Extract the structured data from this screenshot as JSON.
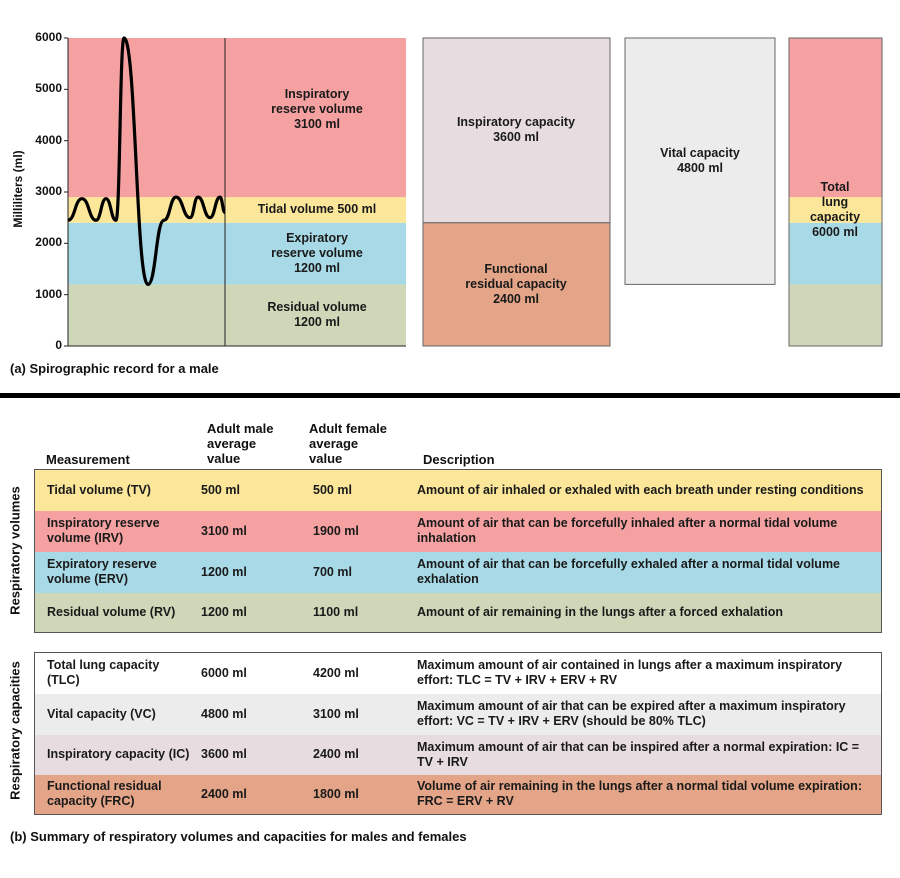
{
  "colors": {
    "irv": "#f5a1a1",
    "tv": "#fbe69a",
    "erv": "#a8d9e6",
    "rv": "#cfd7b9",
    "ic": "#e7dde0",
    "frc": "#e3a487",
    "vc": "#ececec",
    "tlc_row": "#ffffff",
    "vc_row": "#ececec",
    "ic_row": "#e7dde0",
    "frc_row": "#e3a487"
  },
  "chart_data": {
    "type": "diagram",
    "ylabel": "Milliliters (ml)",
    "ylim": [
      0,
      6000
    ],
    "yticks": [
      "0",
      "1000",
      "2000",
      "3000",
      "4000",
      "5000",
      "6000"
    ],
    "spirogram": [
      [
        0,
        2450
      ],
      [
        1,
        2870
      ],
      [
        2,
        2450
      ],
      [
        3,
        2870
      ],
      [
        4,
        2450
      ],
      [
        5,
        6000
      ],
      [
        6,
        1200
      ],
      [
        7,
        2450
      ],
      [
        8,
        2900
      ],
      [
        9,
        2500
      ],
      [
        10,
        2900
      ],
      [
        11,
        2500
      ],
      [
        12,
        2900
      ],
      [
        13,
        2600
      ]
    ],
    "volumes": [
      {
        "key": "rv",
        "from": 0,
        "to": 1200,
        "label": [
          "Residual volume",
          "1200 ml"
        ]
      },
      {
        "key": "erv",
        "from": 1200,
        "to": 2400,
        "label": [
          "Expiratory",
          "reserve volume",
          "1200 ml"
        ]
      },
      {
        "key": "tv",
        "from": 2400,
        "to": 2900,
        "label": [
          "Tidal volume 500 ml"
        ]
      },
      {
        "key": "irv",
        "from": 2900,
        "to": 6000,
        "label": [
          "Inspiratory",
          "reserve volume",
          "3100 ml"
        ]
      }
    ],
    "capacities": [
      {
        "key": "ic",
        "from": 2400,
        "to": 6000,
        "label": [
          "Inspiratory capacity",
          "3600 ml"
        ]
      },
      {
        "key": "frc",
        "from": 0,
        "to": 2400,
        "label": [
          "Functional",
          "residual capacity",
          "2400 ml"
        ]
      },
      {
        "key": "vc",
        "from": 1200,
        "to": 6000,
        "label": [
          "Vital capacity",
          "4800 ml"
        ]
      },
      {
        "key": "tlc",
        "from": 0,
        "to": 6000,
        "label": [
          "Total",
          "lung",
          "capacity",
          "6000 ml"
        ]
      }
    ]
  },
  "caption_a": "(a)  Spirographic record for a male",
  "caption_b": "(b)  Summary of respiratory volumes and capacities for males and females",
  "table": {
    "headers": {
      "measurement": "Measurement",
      "male": [
        "Adult male",
        "average",
        "value"
      ],
      "female": [
        "Adult female",
        "average",
        "value"
      ],
      "description": "Description"
    },
    "group_volumes_label": "Respiratory volumes",
    "group_capacities_label": "Respiratory capacities",
    "volumes": [
      {
        "color": "tv",
        "name": "Tidal volume (TV)",
        "male": "500 ml",
        "female": "500 ml",
        "desc": "Amount of air inhaled or exhaled with each breath under resting conditions"
      },
      {
        "color": "irv",
        "name": "Inspiratory reserve volume (IRV)",
        "male": "3100 ml",
        "female": "1900 ml",
        "desc": "Amount of air that can be forcefully inhaled after a normal tidal volume inhalation"
      },
      {
        "color": "erv",
        "name": "Expiratory reserve volume (ERV)",
        "male": "1200 ml",
        "female": "700 ml",
        "desc": "Amount of air that can be forcefully exhaled after a normal tidal volume exhalation"
      },
      {
        "color": "rv",
        "name": "Residual volume (RV)",
        "male": "1200 ml",
        "female": "1100 ml",
        "desc": "Amount of air remaining in the lungs after a forced exhalation"
      }
    ],
    "capacities": [
      {
        "color": "tlc_row",
        "name": "Total lung capacity (TLC)",
        "male": "6000 ml",
        "female": "4200 ml",
        "desc": "Maximum amount of air contained in lungs after a maximum inspiratory effort: TLC = TV + IRV + ERV + RV"
      },
      {
        "color": "vc_row",
        "name": "Vital capacity (VC)",
        "male": "4800 ml",
        "female": "3100 ml",
        "desc": "Maximum amount of air that can be expired after a maximum inspiratory effort: VC = TV + IRV + ERV (should be 80% TLC)"
      },
      {
        "color": "ic_row",
        "name": "Inspiratory capacity (IC)",
        "male": "3600 ml",
        "female": "2400 ml",
        "desc": "Maximum amount of air that can be inspired after a normal expiration: IC = TV + IRV"
      },
      {
        "color": "frc_row",
        "name": "Functional residual capacity (FRC)",
        "male": "2400 ml",
        "female": "1800 ml",
        "desc": "Volume of air remaining in the lungs after a normal tidal volume expiration: FRC = ERV + RV"
      }
    ]
  }
}
